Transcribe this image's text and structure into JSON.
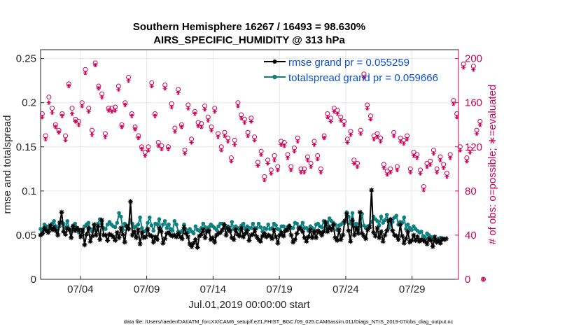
{
  "chart_data": {
    "type": "line",
    "title_line1": "Southern Hemisphere 16267 / 16493 = 98.630%",
    "title_line2": "AIRS_SPECIFIC_HUMIDITY @ 313 hPa",
    "xlabel": "Jul.01,2019 00:00:00 start",
    "ylabel_left": "rmse and totalspread",
    "ylabel_right": "# of obs: o=possible; ∗=evaluated",
    "footer": "data file: /Users/raeder/DAI/ATM_forcXX/CAM6_setup/f.e21.FHIST_BGC.f09_025.CAM6assim.011/Diags_NTrS_2019-07/obs_diag_output.nc",
    "xlim": [
      1,
      32.5
    ],
    "ylim_left": [
      0,
      0.26
    ],
    "ylim_right": [
      0,
      208
    ],
    "x_ticks": [
      4,
      9,
      14,
      19,
      24,
      29
    ],
    "x_tick_labels": [
      "07/04",
      "07/09",
      "07/14",
      "07/19",
      "07/24",
      "07/29"
    ],
    "y_left_ticks": [
      0,
      0.05,
      0.1,
      0.15,
      0.2,
      0.25
    ],
    "y_left_tick_labels": [
      "0",
      "0.05",
      "0.1",
      "0.15",
      "0.2",
      "0.25"
    ],
    "y_right_ticks": [
      0,
      40,
      80,
      120,
      160,
      200
    ],
    "y_right_tick_labels": [
      "0",
      "40",
      "80",
      "120",
      "160",
      "200"
    ],
    "grid": true,
    "legend_position": "top-right",
    "colors": {
      "rmse": "#000000",
      "spread": "#0f8080",
      "obs": "#cc0055",
      "legend_text": "#0a4fd6"
    },
    "series": [
      {
        "name": "rmse grand pr = 0.055259",
        "marker": "asterisk",
        "values": [
          0.05,
          0.052,
          0.058,
          0.055,
          0.053,
          0.061,
          0.056,
          0.059,
          0.055,
          0.05,
          0.064,
          0.076,
          0.054,
          0.051,
          0.058,
          0.056,
          0.047,
          0.06,
          0.055,
          0.058,
          0.056,
          0.048,
          0.056,
          0.039,
          0.051,
          0.058,
          0.043,
          0.049,
          0.062,
          0.05,
          0.06,
          0.045,
          0.067,
          0.05,
          0.05,
          0.044,
          0.051,
          0.05,
          0.048,
          0.044,
          0.053,
          0.047,
          0.058,
          0.051,
          0.042,
          0.06,
          0.057,
          0.088,
          0.05,
          0.054,
          0.047,
          0.056,
          0.04,
          0.053,
          0.047,
          0.048,
          0.057,
          0.05,
          0.049,
          0.042,
          0.048,
          0.045,
          0.058,
          0.054,
          0.041,
          0.046,
          0.052,
          0.053,
          0.05,
          0.049,
          0.05,
          0.048,
          0.052,
          0.048,
          0.046,
          0.059,
          0.052,
          0.048,
          0.04,
          0.037,
          0.041,
          0.045,
          0.036,
          0.049,
          0.051,
          0.056,
          0.047,
          0.054,
          0.055,
          0.045,
          0.047,
          0.042,
          0.05,
          0.052,
          0.053,
          0.056,
          0.062,
          0.05,
          0.058,
          0.055,
          0.047,
          0.045,
          0.056,
          0.051,
          0.049,
          0.058,
          0.048,
          0.052,
          0.055,
          0.044,
          0.05,
          0.051,
          0.056,
          0.048,
          0.045,
          0.043,
          0.049,
          0.052,
          0.048,
          0.05,
          0.049,
          0.046,
          0.056,
          0.048,
          0.041,
          0.05,
          0.053,
          0.049,
          0.055,
          0.056,
          0.06,
          0.05,
          0.042,
          0.045,
          0.052,
          0.058,
          0.057,
          0.054,
          0.047,
          0.043,
          0.048,
          0.056,
          0.047,
          0.054,
          0.047,
          0.055,
          0.053,
          0.05,
          0.054,
          0.065,
          0.054,
          0.059,
          0.056,
          0.062,
          0.047,
          0.044,
          0.056,
          0.045,
          0.05,
          0.066,
          0.074,
          0.055,
          0.043,
          0.067,
          0.05,
          0.058,
          0.052,
          0.076,
          0.052,
          0.049,
          0.046,
          0.056,
          0.059,
          0.101,
          0.053,
          0.049,
          0.058,
          0.047,
          0.054,
          0.043,
          0.05,
          0.055,
          0.066,
          0.068,
          0.055,
          0.05,
          0.049,
          0.045,
          0.062,
          0.049,
          0.041,
          0.046,
          0.054,
          0.042,
          0.044,
          0.05,
          0.044,
          0.048,
          0.043,
          0.045,
          0.044,
          0.043,
          0.04,
          0.046,
          0.044,
          0.037,
          0.048,
          0.042,
          0.044,
          0.041,
          0.046,
          0.045,
          0.046
        ],
        "x_start": 1.0,
        "x_step": 0.1442
      },
      {
        "name": "totalspread grand pr = 0.059666",
        "marker": "dot",
        "values": [
          0.057,
          0.055,
          0.062,
          0.06,
          0.057,
          0.058,
          0.063,
          0.066,
          0.06,
          0.057,
          0.06,
          0.065,
          0.063,
          0.058,
          0.066,
          0.057,
          0.054,
          0.061,
          0.063,
          0.058,
          0.053,
          0.056,
          0.054,
          0.06,
          0.062,
          0.064,
          0.057,
          0.054,
          0.058,
          0.055,
          0.063,
          0.068,
          0.063,
          0.058,
          0.057,
          0.062,
          0.065,
          0.062,
          0.06,
          0.059,
          0.064,
          0.075,
          0.071,
          0.056,
          0.063,
          0.061,
          0.058,
          0.067,
          0.063,
          0.059,
          0.06,
          0.062,
          0.07,
          0.058,
          0.054,
          0.055,
          0.064,
          0.07,
          0.061,
          0.055,
          0.063,
          0.062,
          0.068,
          0.055,
          0.062,
          0.066,
          0.058,
          0.062,
          0.057,
          0.055,
          0.066,
          0.062,
          0.054,
          0.053,
          0.055,
          0.062,
          0.056,
          0.053,
          0.057,
          0.054,
          0.052,
          0.06,
          0.056,
          0.055,
          0.058,
          0.063,
          0.059,
          0.056,
          0.059,
          0.062,
          0.06,
          0.058,
          0.056,
          0.06,
          0.063,
          0.063,
          0.061,
          0.058,
          0.06,
          0.054,
          0.065,
          0.057,
          0.06,
          0.058,
          0.056,
          0.061,
          0.063,
          0.057,
          0.06,
          0.058,
          0.058,
          0.063,
          0.058,
          0.058,
          0.063,
          0.059,
          0.054,
          0.058,
          0.057,
          0.062,
          0.057,
          0.058,
          0.063,
          0.061,
          0.057,
          0.056,
          0.06,
          0.06,
          0.055,
          0.059,
          0.061,
          0.058,
          0.058,
          0.064,
          0.063,
          0.057,
          0.06,
          0.064,
          0.058,
          0.058,
          0.055,
          0.06,
          0.058,
          0.054,
          0.062,
          0.063,
          0.06,
          0.059,
          0.066,
          0.058,
          0.062,
          0.069,
          0.066,
          0.064,
          0.062,
          0.056,
          0.061,
          0.062,
          0.064,
          0.064,
          0.076,
          0.071,
          0.063,
          0.075,
          0.06,
          0.063,
          0.056,
          0.06,
          0.074,
          0.061,
          0.058,
          0.06,
          0.061,
          0.065,
          0.071,
          0.068,
          0.066,
          0.061,
          0.071,
          0.064,
          0.067,
          0.073,
          0.058,
          0.062,
          0.065,
          0.07,
          0.072,
          0.062,
          0.065,
          0.064,
          0.07,
          0.057,
          0.062,
          0.058,
          0.056,
          0.06,
          0.057,
          0.055,
          0.053,
          0.054,
          0.049,
          0.047,
          0.052,
          0.05,
          0.048,
          0.046,
          0.044,
          0.045,
          0.046,
          0.047,
          0.045
        ],
        "x_start": 1.0,
        "x_step": 0.1442
      },
      {
        "name": "obs possible",
        "marker": "circle",
        "axis": "right",
        "x_start": 1.125,
        "x_step": 0.25,
        "values": [
          150,
          130,
          165,
          155,
          140,
          135,
          150,
          130,
          177,
          155,
          145,
          143,
          160,
          190,
          155,
          135,
          196,
          175,
          168,
          132,
          155,
          155,
          156,
          175,
          140,
          160,
          183,
          150,
          138,
          130,
          120,
          115,
          120,
          178,
          150,
          124,
          121,
          176,
          120,
          159,
          137,
          172,
          140,
          117,
          158,
          127,
          152,
          142,
          141,
          157,
          147,
          138,
          155,
          132,
          120,
          133,
          128,
          110,
          126,
          160,
          149,
          145,
          133,
          146,
          129,
          106,
          116,
          93,
          108,
          99,
          112,
          102,
          125,
          124,
          113,
          102,
          119,
          128,
          100,
          100,
          111,
          105,
          125,
          112,
          100,
          130,
          150,
          146,
          155,
          153,
          147,
          143,
          127,
          134,
          108,
          105,
          135,
          186,
          158,
          148,
          130,
          132,
          128,
          104,
          98,
          100,
          133,
          102,
          128,
          126,
          130,
          100,
          115,
          113,
          99,
          84,
          105,
          107,
          117,
          100,
          111,
          104,
          96,
          113,
          162,
          150,
          120,
          195,
          110,
          118,
          193,
          135,
          143,
          0
        ]
      },
      {
        "name": "obs evaluated",
        "marker": "asterisk",
        "axis": "right",
        "x_start": 1.125,
        "x_step": 0.25,
        "values": [
          147,
          127,
          160,
          151,
          138,
          133,
          148,
          126,
          175,
          150,
          143,
          140,
          157,
          187,
          152,
          131,
          194,
          173,
          165,
          129,
          153,
          152,
          153,
          172,
          138,
          158,
          180,
          148,
          136,
          128,
          118,
          112,
          117,
          175,
          148,
          121,
          118,
          173,
          118,
          156,
          134,
          169,
          138,
          114,
          155,
          124,
          150,
          139,
          138,
          154,
          144,
          135,
          152,
          129,
          117,
          130,
          125,
          107,
          122,
          157,
          146,
          142,
          130,
          143,
          126,
          103,
          113,
          90,
          105,
          96,
          108,
          99,
          122,
          121,
          110,
          99,
          116,
          125,
          97,
          97,
          108,
          102,
          122,
          109,
          97,
          128,
          147,
          143,
          152,
          150,
          144,
          140,
          124,
          131,
          105,
          102,
          132,
          183,
          155,
          145,
          127,
          129,
          125,
          101,
          95,
          97,
          130,
          99,
          125,
          123,
          127,
          97,
          112,
          110,
          96,
          81,
          102,
          104,
          114,
          97,
          108,
          101,
          93,
          110,
          159,
          147,
          117,
          192,
          107,
          115,
          190,
          132,
          140,
          0
        ]
      }
    ]
  }
}
